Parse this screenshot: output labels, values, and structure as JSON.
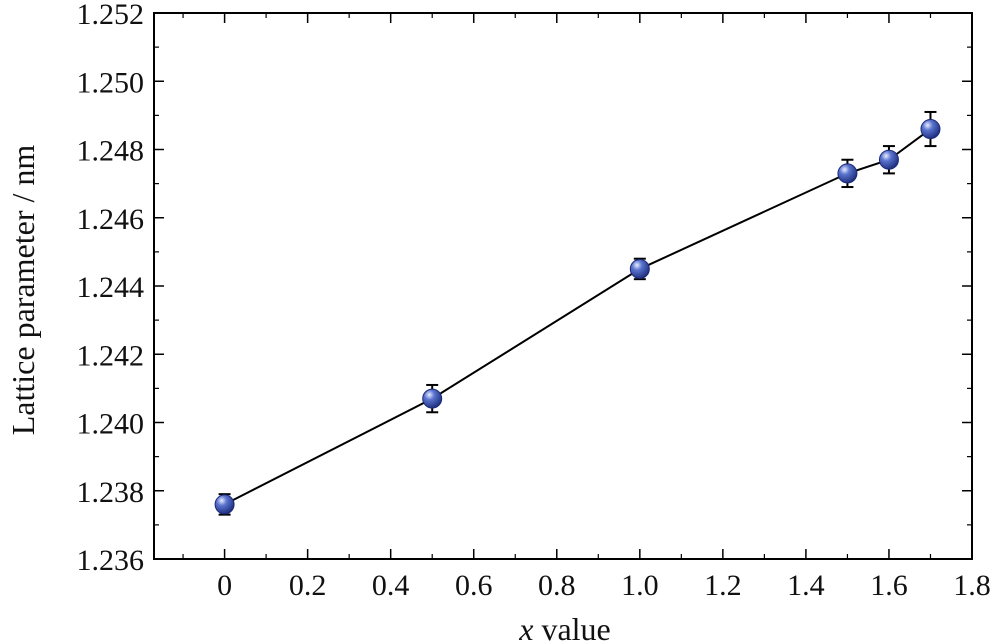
{
  "chart_data": {
    "type": "scatter",
    "title": "",
    "xlabel_var": "x",
    "xlabel_rest": " value",
    "ylabel": "Lattice parameter / nm",
    "xlim": [
      -0.17,
      1.8
    ],
    "ylim": [
      1.236,
      1.252
    ],
    "xticks": [
      0,
      0.2,
      0.4,
      0.6,
      0.8,
      1.0,
      1.2,
      1.4,
      1.6,
      1.8
    ],
    "xtick_labels": [
      "0",
      "0.2",
      "0.4",
      "0.6",
      "0.8",
      "1.0",
      "1.2",
      "1.4",
      "1.6",
      "1.8"
    ],
    "yticks": [
      1.236,
      1.238,
      1.24,
      1.242,
      1.244,
      1.246,
      1.248,
      1.25,
      1.252
    ],
    "ytick_labels": [
      "1.236",
      "1.238",
      "1.240",
      "1.242",
      "1.244",
      "1.246",
      "1.248",
      "1.250",
      "1.252"
    ],
    "grid": false,
    "series": [
      {
        "connect": true,
        "marker_color": "#2f4aa6",
        "line_color": "#000000",
        "x": [
          0,
          0.5,
          1.0,
          1.5,
          1.6,
          1.7
        ],
        "y": [
          1.2376,
          1.2407,
          1.2445,
          1.2473,
          1.2477,
          1.2486
        ],
        "err": [
          0.0003,
          0.0004,
          0.0003,
          0.0004,
          0.0004,
          0.0005
        ]
      }
    ]
  }
}
